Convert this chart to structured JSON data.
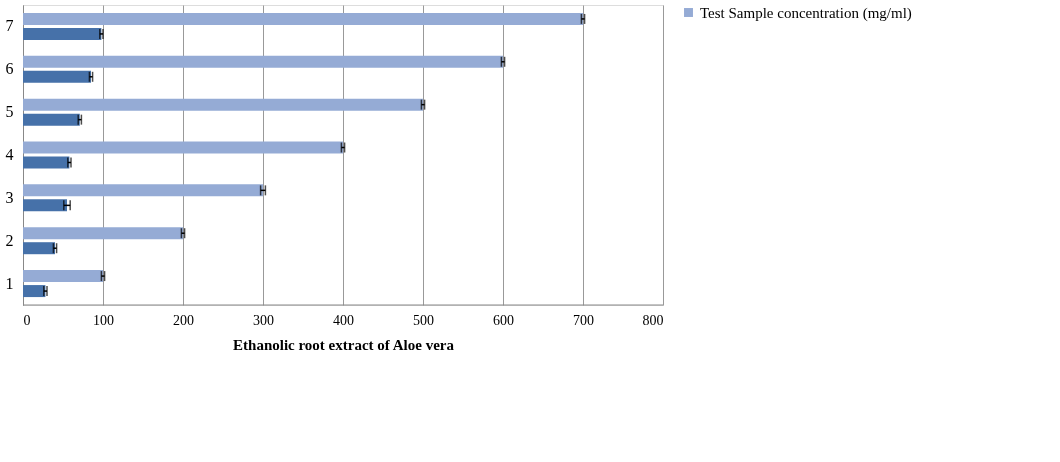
{
  "chart_data": {
    "type": "bar",
    "orientation": "horizontal",
    "xlabel": "Ethanolic root extract of Aloe vera",
    "categories": [
      "7",
      "6",
      "5",
      "4",
      "3",
      "2",
      "1"
    ],
    "series": [
      {
        "name": "Test Sample concentration (mg/ml)",
        "color": "#95abd5",
        "values": [
          700,
          600,
          500,
          400,
          300,
          200,
          100
        ],
        "errors": [
          2,
          2,
          2,
          2,
          3,
          2,
          2
        ]
      },
      {
        "color": "#4671a9",
        "values": [
          98,
          85,
          71,
          58,
          55,
          40,
          28
        ],
        "errors": [
          2,
          2,
          2,
          2,
          4,
          2,
          2
        ]
      }
    ],
    "xlim": [
      0,
      800
    ],
    "xticks": [
      0,
      100,
      200,
      300,
      400,
      500,
      600,
      700,
      800
    ],
    "grid": "x",
    "legend": "right"
  }
}
